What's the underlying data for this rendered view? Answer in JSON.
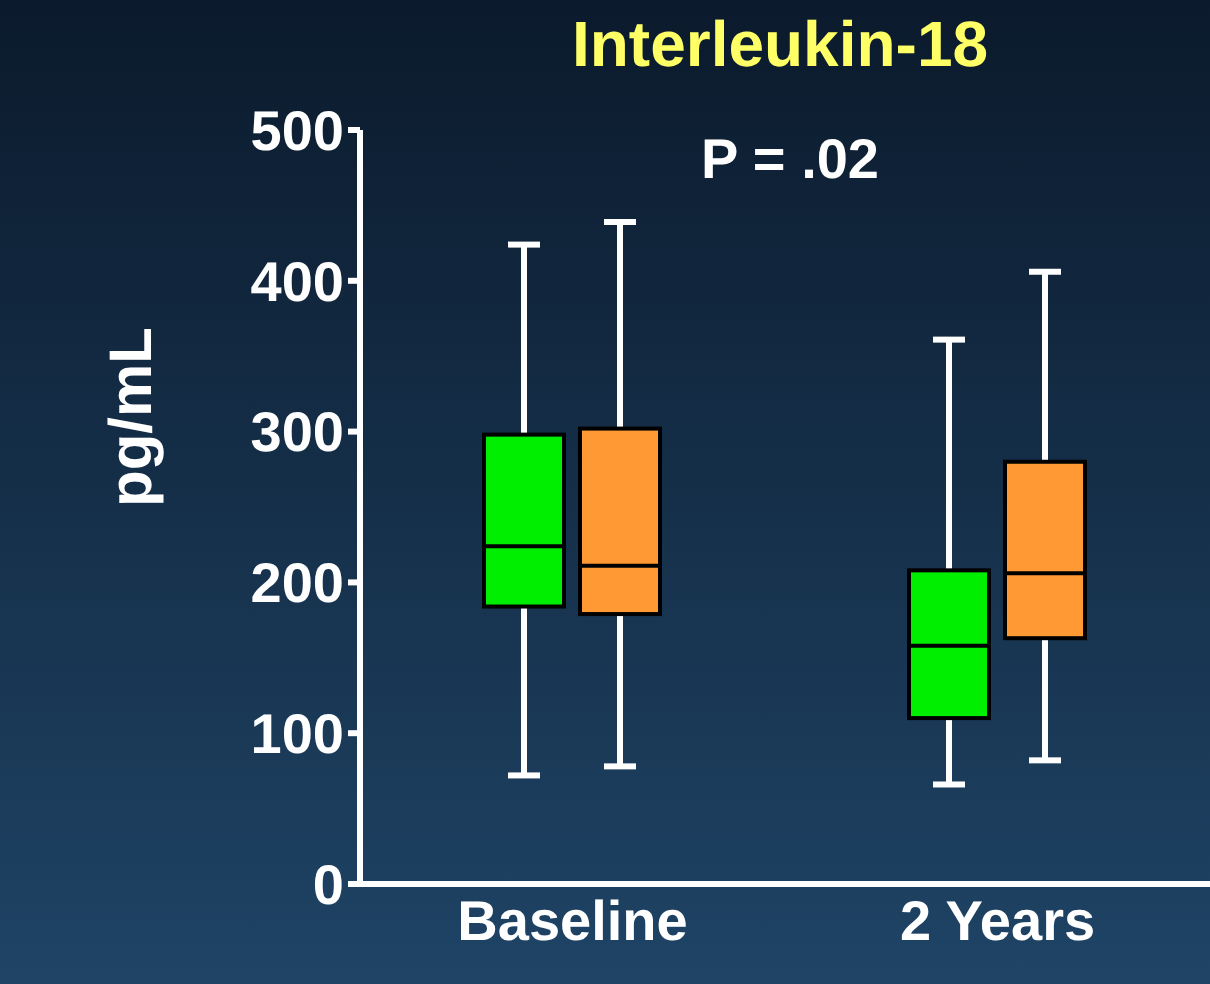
{
  "chart_data": {
    "type": "box",
    "title": "Interleukin-18",
    "ylabel": "pg/mL",
    "annotations": [
      "P = .02"
    ],
    "categories": [
      "Baseline",
      "2 Years"
    ],
    "ylim": [
      0,
      500
    ],
    "yticks": [
      0,
      100,
      200,
      300,
      400,
      500
    ],
    "grid": false,
    "legend": false,
    "series": [
      {
        "color": "#00ee00",
        "boxes": [
          {
            "low": 72,
            "q1": 184,
            "median": 224,
            "q3": 298,
            "high": 424
          },
          {
            "low": 66,
            "q1": 110,
            "median": 158,
            "q3": 208,
            "high": 361
          }
        ]
      },
      {
        "color": "#ff9933",
        "boxes": [
          {
            "low": 78,
            "q1": 179,
            "median": 211,
            "q3": 302,
            "high": 439
          },
          {
            "low": 82,
            "q1": 163,
            "median": 206,
            "q3": 280,
            "high": 406
          }
        ]
      }
    ]
  }
}
